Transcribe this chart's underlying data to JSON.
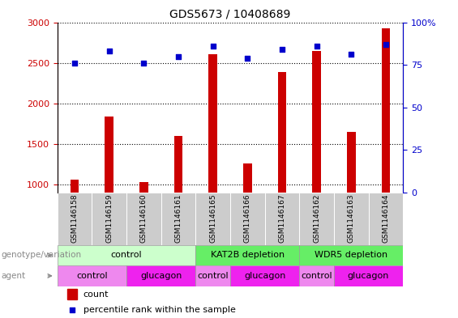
{
  "title": "GDS5673 / 10408689",
  "samples": [
    "GSM1146158",
    "GSM1146159",
    "GSM1146160",
    "GSM1146161",
    "GSM1146165",
    "GSM1146166",
    "GSM1146167",
    "GSM1146162",
    "GSM1146163",
    "GSM1146164"
  ],
  "counts": [
    1055,
    1840,
    1030,
    1600,
    2610,
    1260,
    2390,
    2650,
    1645,
    2930
  ],
  "percentiles": [
    76,
    83,
    76,
    80,
    86,
    79,
    84,
    86,
    81,
    87
  ],
  "ylim_left": [
    900,
    3000
  ],
  "ylim_right": [
    0,
    100
  ],
  "yticks_left": [
    1000,
    1500,
    2000,
    2500,
    3000
  ],
  "yticks_right": [
    0,
    25,
    50,
    75,
    100
  ],
  "bar_color": "#CC0000",
  "dot_color": "#0000CC",
  "bar_width": 0.25,
  "genotype_groups": [
    {
      "label": "control",
      "start": 0,
      "end": 4,
      "color": "#CCFFCC"
    },
    {
      "label": "KAT2B depletion",
      "start": 4,
      "end": 7,
      "color": "#66EE66"
    },
    {
      "label": "WDR5 depletion",
      "start": 7,
      "end": 10,
      "color": "#66EE66"
    }
  ],
  "agent_groups": [
    {
      "label": "control",
      "start": 0,
      "end": 2,
      "color": "#EE88EE"
    },
    {
      "label": "glucagon",
      "start": 2,
      "end": 4,
      "color": "#EE22EE"
    },
    {
      "label": "control",
      "start": 4,
      "end": 5,
      "color": "#EE88EE"
    },
    {
      "label": "glucagon",
      "start": 5,
      "end": 7,
      "color": "#EE22EE"
    },
    {
      "label": "control",
      "start": 7,
      "end": 8,
      "color": "#EE88EE"
    },
    {
      "label": "glucagon",
      "start": 8,
      "end": 10,
      "color": "#EE22EE"
    }
  ],
  "sample_box_color": "#CCCCCC",
  "legend_count_color": "#CC0000",
  "legend_dot_color": "#0000CC",
  "legend_count_label": "count",
  "legend_dot_label": "percentile rank within the sample",
  "bg_color": "#FFFFFF",
  "left_label_color": "#CC0000",
  "right_label_color": "#0000CC",
  "row_label_color": "#888888",
  "arrow_color": "#888888",
  "title_fontsize": 10,
  "tick_fontsize": 8,
  "sample_fontsize": 6.5,
  "row_fontsize": 8,
  "legend_fontsize": 8
}
